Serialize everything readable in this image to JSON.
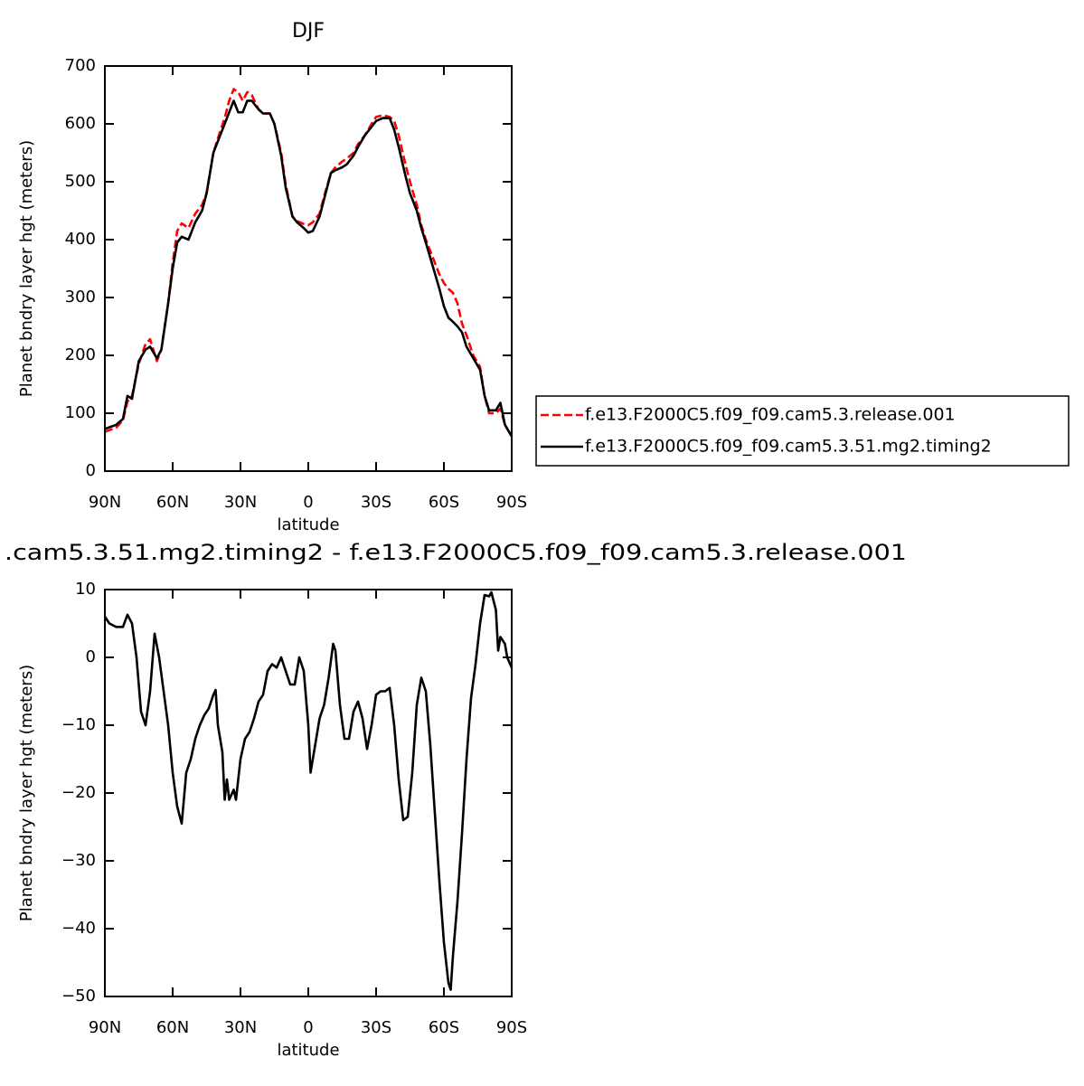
{
  "chart_data": [
    {
      "type": "line",
      "title": "DJF",
      "xlabel": "latitude",
      "ylabel": "Planet bndry layer hgt (meters)",
      "xlim": [
        90,
        -90
      ],
      "xticks": [
        {
          "value": 90,
          "label": "90N"
        },
        {
          "value": 60,
          "label": "60N"
        },
        {
          "value": 30,
          "label": "30N"
        },
        0,
        {
          "value": -30,
          "label": "30S"
        },
        {
          "value": -60,
          "label": "60S"
        },
        {
          "value": -90,
          "label": "90S"
        }
      ],
      "ylim": [
        0,
        700
      ],
      "yticks": [
        0,
        100,
        200,
        300,
        400,
        500,
        600,
        700
      ],
      "legend": "right",
      "x": [
        90,
        85,
        82,
        80,
        78,
        75,
        72,
        70,
        67,
        65,
        62,
        60,
        58,
        56,
        53,
        50,
        47,
        45,
        42,
        40,
        37,
        35,
        33,
        31,
        29,
        27,
        25,
        22,
        20,
        17,
        15,
        12,
        10,
        7,
        5,
        2,
        0,
        -2,
        -5,
        -7,
        -10,
        -12,
        -15,
        -17,
        -20,
        -22,
        -25,
        -28,
        -30,
        -33,
        -36,
        -38,
        -40,
        -43,
        -45,
        -48,
        -50,
        -52,
        -55,
        -58,
        -60,
        -62,
        -64,
        -66,
        -68,
        -70,
        -73,
        -76,
        -78,
        -80,
        -83,
        -85,
        -87,
        -90
      ],
      "series": [
        {
          "name": "f.e13.F2000C5.f09_f09.cam5.3.release.001",
          "color": "#ff0000",
          "style": "dashed",
          "values": [
            68,
            75,
            88,
            120,
            130,
            185,
            220,
            228,
            190,
            210,
            290,
            360,
            415,
            428,
            420,
            445,
            460,
            480,
            550,
            575,
            610,
            640,
            660,
            655,
            640,
            655,
            650,
            625,
            618,
            618,
            600,
            550,
            495,
            440,
            432,
            427,
            425,
            430,
            445,
            475,
            515,
            525,
            535,
            540,
            550,
            565,
            580,
            600,
            612,
            615,
            612,
            605,
            580,
            530,
            500,
            460,
            425,
            400,
            370,
            340,
            325,
            315,
            308,
            290,
            255,
            235,
            200,
            180,
            130,
            100,
            100,
            108,
            80,
            60
          ]
        },
        {
          "name": "f.e13.F2000C5.f09_f09.cam5.3.51.mg2.timing2",
          "color": "#000000",
          "style": "solid",
          "values": [
            73,
            80,
            90,
            130,
            125,
            190,
            210,
            215,
            195,
            210,
            290,
            350,
            395,
            405,
            400,
            430,
            450,
            480,
            550,
            570,
            600,
            620,
            640,
            620,
            620,
            640,
            640,
            625,
            618,
            618,
            600,
            545,
            490,
            440,
            430,
            420,
            412,
            415,
            440,
            470,
            515,
            520,
            525,
            530,
            545,
            560,
            580,
            595,
            605,
            610,
            610,
            590,
            560,
            510,
            480,
            450,
            420,
            395,
            355,
            315,
            285,
            265,
            258,
            250,
            240,
            215,
            195,
            175,
            130,
            105,
            105,
            118,
            80,
            60
          ]
        }
      ]
    },
    {
      "type": "line",
      "title": ".cam5.3.51.mg2.timing2 - f.e13.F2000C5.f09_f09.cam5.3.release.001",
      "xlabel": "latitude",
      "ylabel": "Planet bndry layer hgt (meters)",
      "xlim": [
        90,
        -90
      ],
      "xticks": [
        {
          "value": 90,
          "label": "90N"
        },
        {
          "value": 60,
          "label": "60N"
        },
        {
          "value": 30,
          "label": "30N"
        },
        0,
        {
          "value": -30,
          "label": "30S"
        },
        {
          "value": -60,
          "label": "60S"
        },
        {
          "value": -90,
          "label": "90S"
        }
      ],
      "ylim": [
        -50,
        10
      ],
      "yticks": [
        {
          "value": -50,
          "label": "−50"
        },
        {
          "value": -40,
          "label": "−40"
        },
        {
          "value": -30,
          "label": "−30"
        },
        {
          "value": -20,
          "label": "−20"
        },
        {
          "value": -10,
          "label": "−10"
        },
        0,
        10
      ],
      "x": [
        90,
        88,
        85,
        82,
        80,
        78,
        76,
        74,
        72,
        70,
        68,
        66,
        64,
        62,
        60,
        58,
        56,
        54,
        52,
        50,
        48,
        46,
        44,
        42,
        41,
        40,
        38,
        37,
        36,
        35,
        33,
        32,
        30,
        28,
        26,
        24,
        22,
        20,
        18,
        16,
        14,
        12,
        10,
        8,
        6,
        4,
        2,
        0,
        -1,
        -3,
        -5,
        -7,
        -9,
        -11,
        -12,
        -14,
        -16,
        -18,
        -20,
        -22,
        -24,
        -26,
        -28,
        -30,
        -32,
        -34,
        -36,
        -38,
        -40,
        -42,
        -44,
        -46,
        -48,
        -50,
        -52,
        -54,
        -56,
        -58,
        -60,
        -62,
        -63,
        -64,
        -66,
        -68,
        -70,
        -72,
        -74,
        -76,
        -78,
        -80,
        -81,
        -83,
        -84,
        -85,
        -87,
        -88,
        -90
      ],
      "series": [
        {
          "color": "#000000",
          "style": "solid",
          "values": [
            6,
            5,
            4.5,
            4.5,
            6.3,
            5,
            0,
            -8,
            -10,
            -5,
            3.5,
            0,
            -5,
            -10,
            -17,
            -22,
            -24.5,
            -17,
            -15,
            -12,
            -10,
            -8.5,
            -7.5,
            -5.5,
            -4.8,
            -10,
            -14,
            -21,
            -18,
            -21,
            -19.5,
            -21,
            -15,
            -12,
            -11,
            -9,
            -6.5,
            -5.5,
            -2,
            -1,
            -1.5,
            0,
            -2,
            -4,
            -4,
            0,
            -2,
            -10,
            -17,
            -13,
            -9,
            -7,
            -3,
            2,
            1,
            -7,
            -12,
            -12,
            -8,
            -6.5,
            -9,
            -13.5,
            -10,
            -5.5,
            -5,
            -5,
            -4.5,
            -10,
            -18,
            -24,
            -23.5,
            -17,
            -7,
            -3,
            -5,
            -13,
            -23,
            -33,
            -42,
            -48,
            -49,
            -44,
            -36,
            -26,
            -15,
            -6,
            -1,
            5,
            9.2,
            9,
            9.6,
            7,
            1,
            3,
            2,
            0,
            -1.5
          ]
        }
      ]
    }
  ]
}
